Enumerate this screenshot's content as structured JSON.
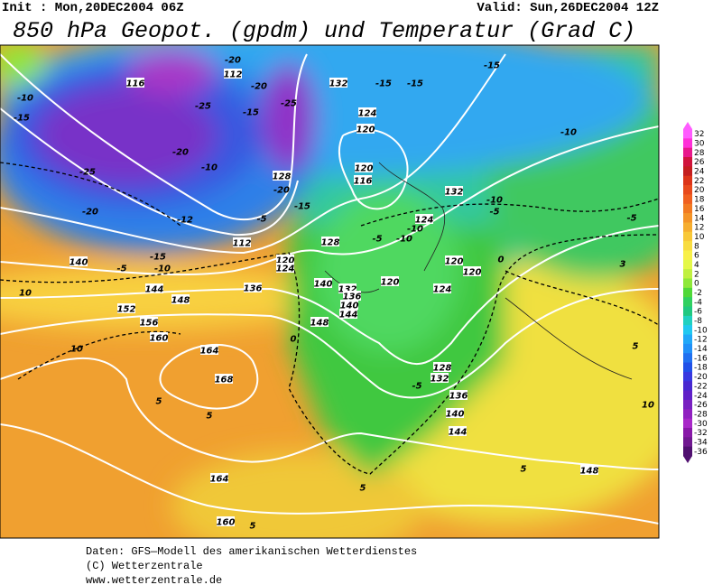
{
  "header": {
    "init": "Init : Mon,20DEC2004 06Z",
    "valid": "Valid: Sun,26DEC2004 12Z",
    "title": "850 hPa Geopot. (gpdm) und Temperatur (Grad C)"
  },
  "colorbar": {
    "ticks": [
      32,
      30,
      28,
      26,
      24,
      22,
      20,
      18,
      16,
      14,
      12,
      10,
      8,
      6,
      4,
      2,
      0,
      -2,
      -4,
      -6,
      -8,
      -10,
      -12,
      -14,
      -16,
      -18,
      -20,
      -22,
      -24,
      -26,
      -28,
      -30,
      -32,
      -34,
      -36
    ],
    "colors": [
      "#ff5cff",
      "#ff30d8",
      "#e8188c",
      "#d0143c",
      "#c41e1e",
      "#dc3418",
      "#e84a1c",
      "#f06020",
      "#f27a22",
      "#f49428",
      "#f6ae30",
      "#f8c838",
      "#f8dc40",
      "#f8f048",
      "#e4f848",
      "#c0f040",
      "#8ee838",
      "#50d838",
      "#30d060",
      "#20c880",
      "#20d0c0",
      "#20c8f0",
      "#20a8f8",
      "#2090f8",
      "#2070f0",
      "#2050e8",
      "#3838e0",
      "#4828d0",
      "#6020c8",
      "#7820c0",
      "#9020c0",
      "#a828c8",
      "#8818a8",
      "#701890",
      "#501070"
    ]
  },
  "map_labels": [
    "116",
    "-20",
    "112",
    "-20",
    "-25",
    "-25",
    "-15",
    "132",
    "-15",
    "-15",
    "-15",
    "-10",
    "-15",
    "124",
    "120",
    "-10",
    "-25",
    "-20",
    "-10",
    "120",
    "116",
    "128",
    "-20",
    "132",
    "-10",
    "-20",
    "-12",
    "-5",
    "-15",
    "-5",
    "-5",
    "124",
    "-10",
    "112",
    "128",
    "-5",
    "-10",
    "140",
    "-5",
    "-10",
    "-15",
    "120",
    "124",
    "120",
    "120",
    "0",
    "10",
    "144",
    "148",
    "136",
    "140",
    "132",
    "136",
    "140",
    "144",
    "148",
    "120",
    "124",
    "152",
    "156",
    "160",
    "164",
    "0",
    "10",
    "168",
    "128",
    "132",
    "-5",
    "136",
    "5",
    "5",
    "140",
    "144",
    "148",
    "10",
    "5",
    "164",
    "160",
    "5",
    "5",
    "5",
    "3"
  ],
  "footer": [
    "Daten: GFS—Modell des amerikanischen Wetterdienstes",
    "(C) Wetterzentrale",
    "www.wetterzentrale.de"
  ]
}
